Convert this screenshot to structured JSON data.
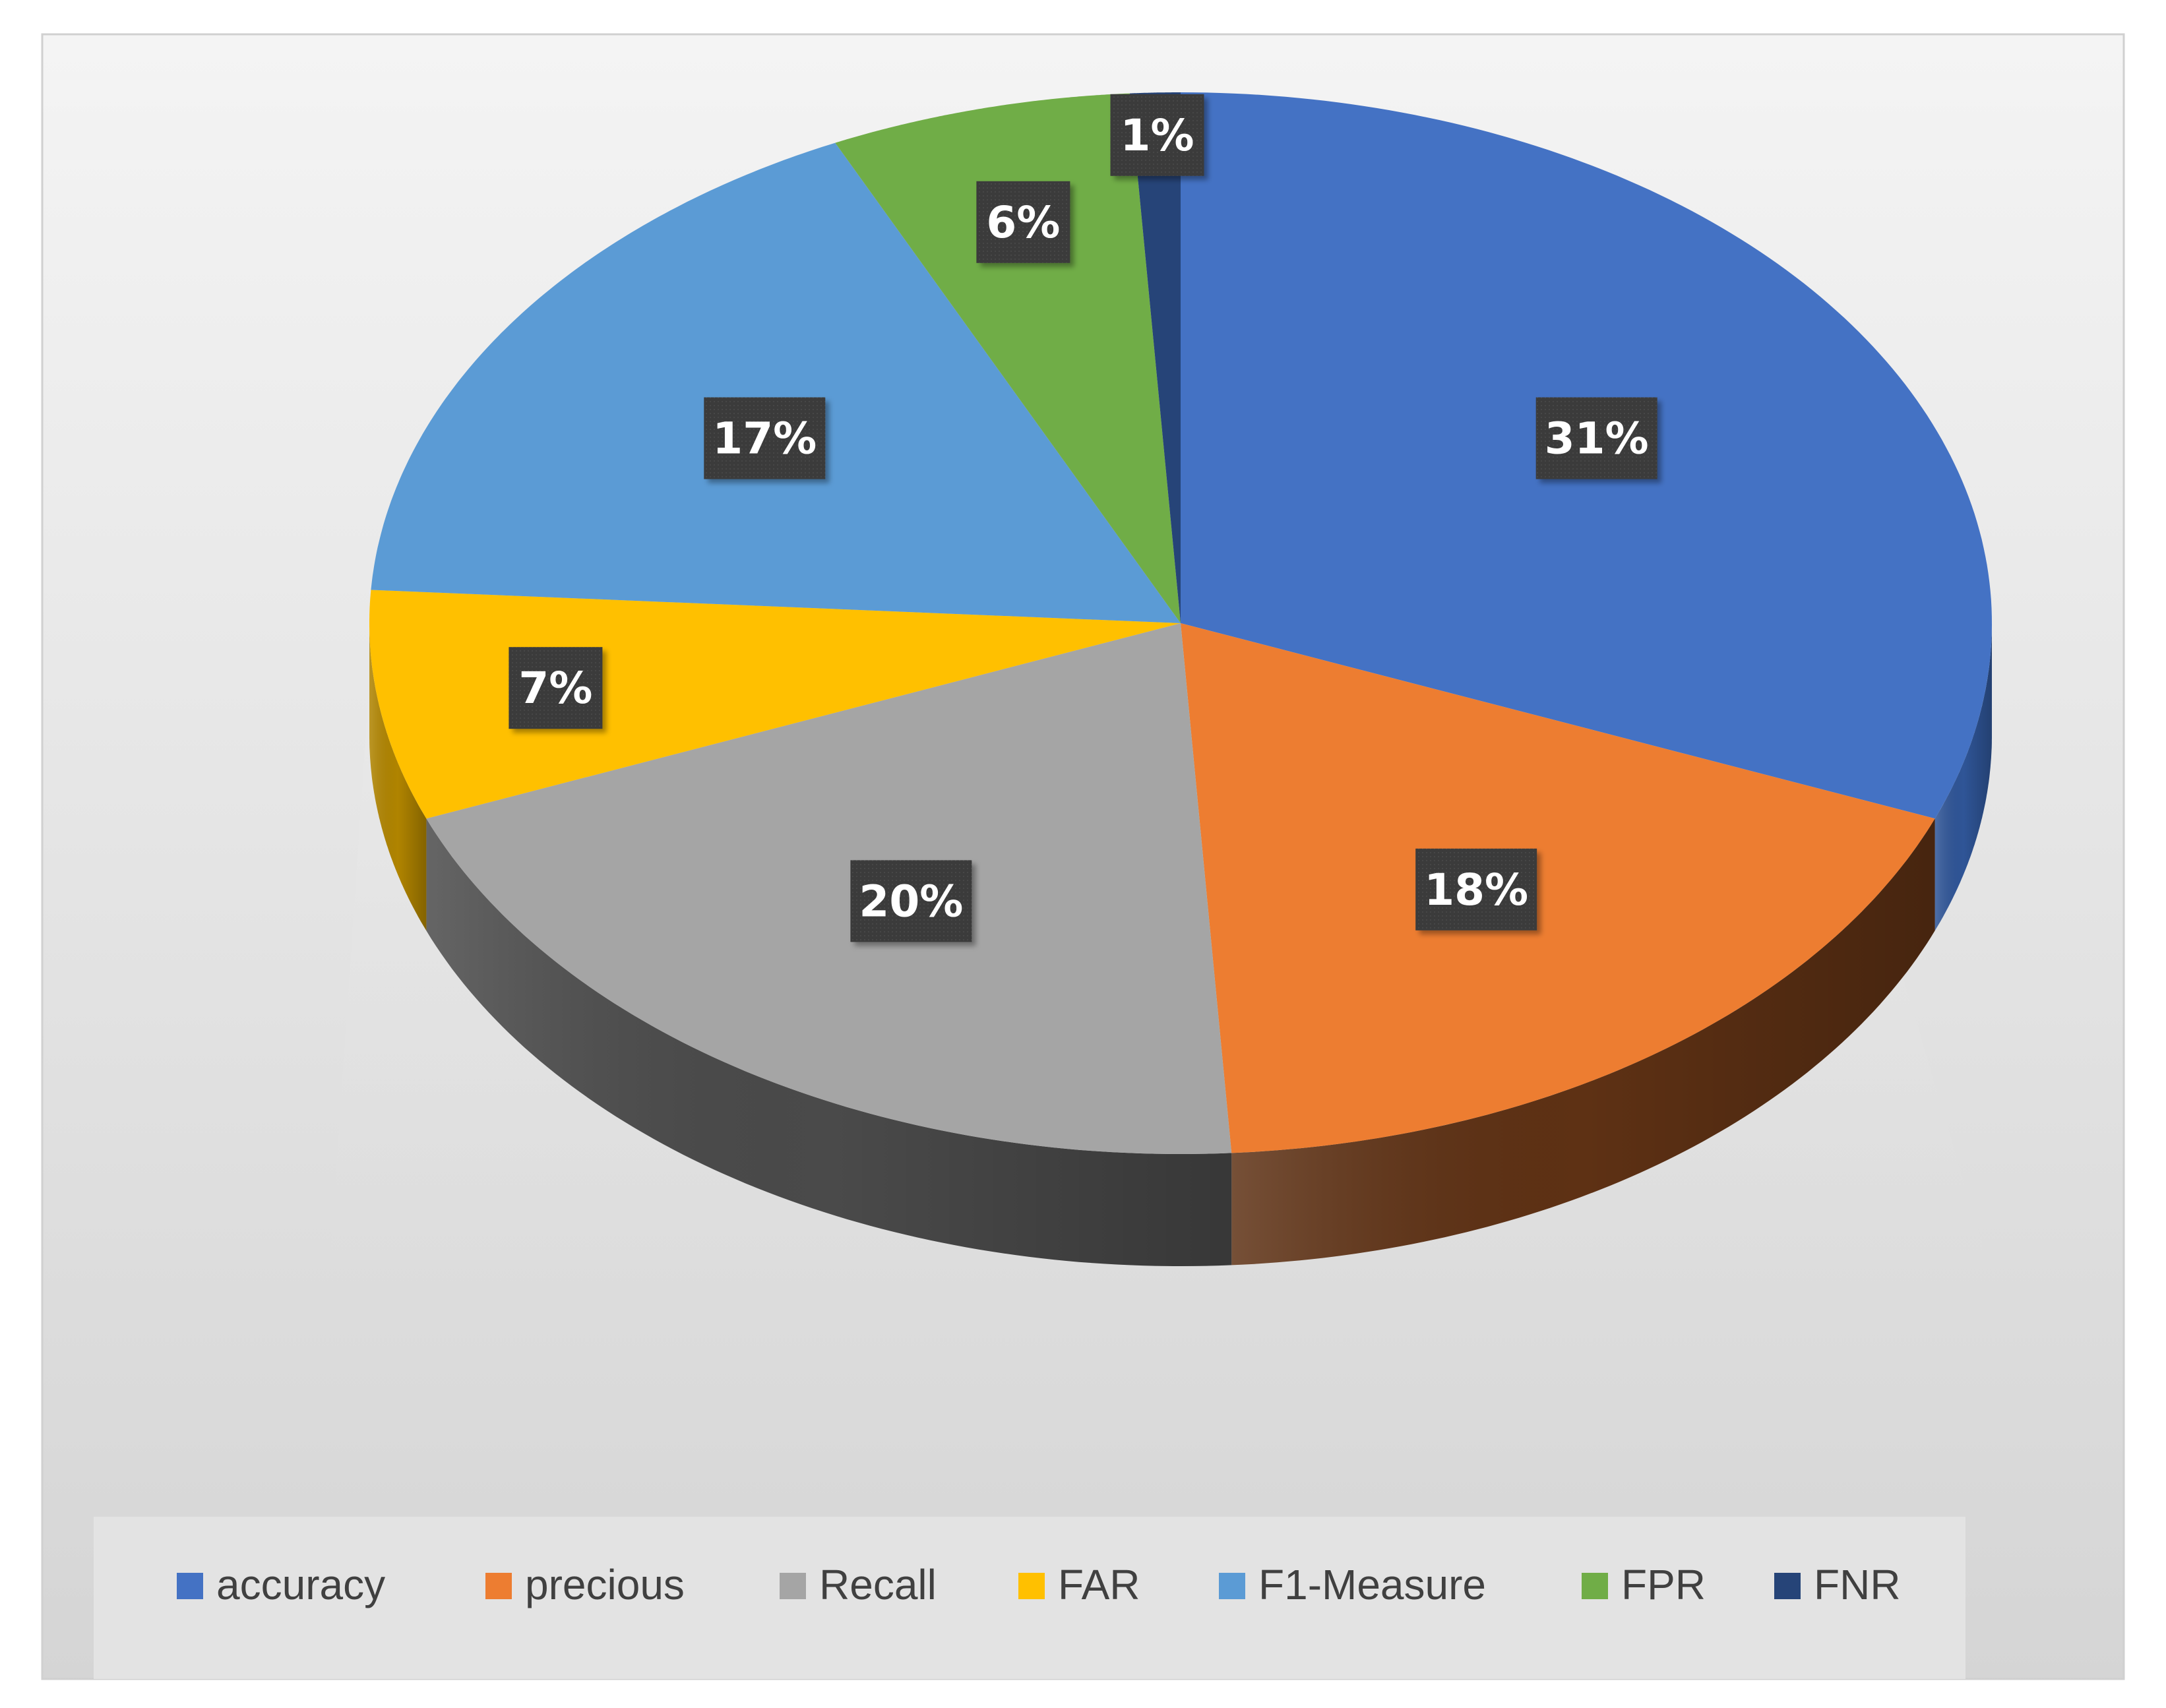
{
  "chart_data": {
    "type": "pie",
    "style": "3d",
    "data_label_format": "percent",
    "legend_position": "bottom",
    "slices": [
      {
        "name": "accuracy",
        "value": 31,
        "label": "31%",
        "color": "#4472C4",
        "side_color": "#2F5597"
      },
      {
        "name": "precious",
        "value": 18,
        "label": "18%",
        "color": "#ED7D31",
        "side_color": "#5E3114"
      },
      {
        "name": "Recall",
        "value": 20,
        "label": "20%",
        "color": "#A5A5A5",
        "side_color": "#4A4A4A"
      },
      {
        "name": "FAR",
        "value": 7,
        "label": "7%",
        "color": "#FFC000",
        "side_color": "#B08400"
      },
      {
        "name": "F1-Measure",
        "value": 17,
        "label": "17%",
        "color": "#5B9BD5",
        "side_color": "#3A6E9E"
      },
      {
        "name": "FPR",
        "value": 6,
        "label": "6%",
        "color": "#70AD47",
        "side_color": "#4A7A2E"
      },
      {
        "name": "FNR",
        "value": 1,
        "label": "1%",
        "color": "#264478",
        "side_color": "#1A2F55"
      }
    ]
  }
}
